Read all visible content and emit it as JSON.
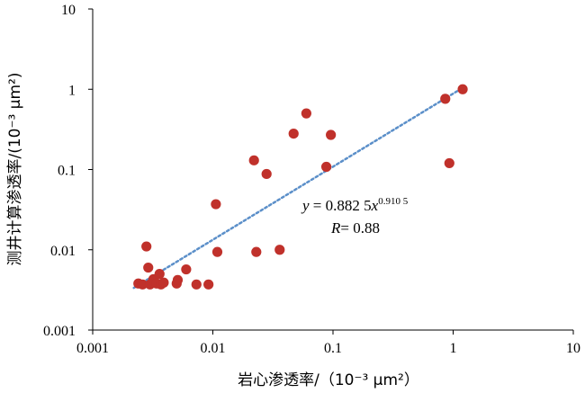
{
  "chart_data": {
    "type": "scatter",
    "x_scale": "log",
    "y_scale": "log",
    "xlim": [
      0.001,
      10
    ],
    "ylim": [
      0.001,
      10
    ],
    "x_ticks": [
      "0.001",
      "0.01",
      "0.1",
      "1",
      "10"
    ],
    "y_ticks": [
      "0.001",
      "0.01",
      "0.1",
      "1",
      "10"
    ],
    "xlabel": "岩心渗透率/（10⁻³ μm²）",
    "ylabel": "测井计算渗透率/(10⁻³ μm²)",
    "grid": false,
    "point_color": "#C0312B",
    "trend_color": "#5B8FC9",
    "points": [
      {
        "x": 0.0024,
        "y": 0.0038
      },
      {
        "x": 0.0026,
        "y": 0.0037
      },
      {
        "x": 0.0028,
        "y": 0.011
      },
      {
        "x": 0.0029,
        "y": 0.006
      },
      {
        "x": 0.003,
        "y": 0.0037
      },
      {
        "x": 0.0032,
        "y": 0.0043
      },
      {
        "x": 0.0034,
        "y": 0.0038
      },
      {
        "x": 0.0036,
        "y": 0.005
      },
      {
        "x": 0.0037,
        "y": 0.0037
      },
      {
        "x": 0.0039,
        "y": 0.0039
      },
      {
        "x": 0.005,
        "y": 0.0038
      },
      {
        "x": 0.0051,
        "y": 0.0042
      },
      {
        "x": 0.006,
        "y": 0.0057
      },
      {
        "x": 0.0073,
        "y": 0.0037
      },
      {
        "x": 0.0092,
        "y": 0.0037
      },
      {
        "x": 0.0106,
        "y": 0.037
      },
      {
        "x": 0.0109,
        "y": 0.0094
      },
      {
        "x": 0.022,
        "y": 0.13
      },
      {
        "x": 0.023,
        "y": 0.0094
      },
      {
        "x": 0.028,
        "y": 0.088
      },
      {
        "x": 0.036,
        "y": 0.01
      },
      {
        "x": 0.047,
        "y": 0.28
      },
      {
        "x": 0.06,
        "y": 0.5
      },
      {
        "x": 0.088,
        "y": 0.108
      },
      {
        "x": 0.096,
        "y": 0.27
      },
      {
        "x": 0.86,
        "y": 0.76
      },
      {
        "x": 0.93,
        "y": 0.12
      },
      {
        "x": 1.2,
        "y": 1.0
      }
    ],
    "trendline": {
      "type": "power",
      "a": 0.8825,
      "b": 0.9105,
      "x_range": [
        0.0022,
        1.2
      ]
    },
    "annotation": {
      "equation_lhs": "y",
      "equation_mid": " = 0.882 5",
      "equation_var": "x",
      "equation_exp": "0.910 5",
      "r_label": "R",
      "r_value": "= 0.88"
    }
  }
}
